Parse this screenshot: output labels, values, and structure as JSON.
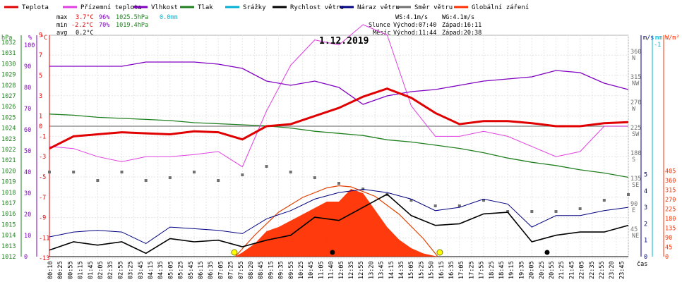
{
  "legend": [
    {
      "label": "Teplota",
      "color": "#e00000"
    },
    {
      "label": "Přízemní teplota",
      "color": "#e040e0"
    },
    {
      "label": "Vlhkost",
      "color": "#8000c0"
    },
    {
      "label": "Tlak",
      "color": "#208020"
    },
    {
      "label": "Srážky",
      "color": "#00b0d0"
    },
    {
      "label": "Rychlost větru",
      "color": "#000000"
    },
    {
      "label": "Náraz větru",
      "color": "#000080"
    },
    {
      "label": "Směr větru",
      "color": "#707070"
    },
    {
      "label": "Globální záření",
      "color": "#ff3000"
    }
  ],
  "stats": {
    "max_label": "max",
    "max_temp": "3.7°C",
    "max_hum": "96%",
    "max_press": "1025.5hPa",
    "max_rain": "0.0mm",
    "min_label": "min",
    "min_temp": "-2.2°C",
    "min_hum": "70%",
    "min_press": "1019.4hPa",
    "avg_label": "avg",
    "avg_temp": "0.2°C",
    "ws": "WS:4.1m/s",
    "wg": "WG:4.1m/s",
    "sun_label": "Slunce",
    "sun_rise": "Východ:07:40",
    "sun_set": "Západ:16:11",
    "moon_label": "Měsíc",
    "moon_rise": "Východ:11:44",
    "moon_set": "Západ:20:38"
  },
  "date_title": "1.12.2019",
  "axes": {
    "hpa_unit": "hPa",
    "pct_unit": "%",
    "c_unit": "°C",
    "ms_unit": "m/s",
    "mm_unit": "mm",
    "wm_unit": "W/m²",
    "time_unit": "čas"
  },
  "chart_data": {
    "type": "line",
    "title": "1.12.2019",
    "x_ticks": [
      "00:10",
      "00:25",
      "00:55",
      "01:15",
      "01:45",
      "02:05",
      "02:35",
      "02:55",
      "03:25",
      "03:45",
      "04:15",
      "04:35",
      "05:05",
      "05:25",
      "05:45",
      "06:15",
      "06:35",
      "07:05",
      "07:25",
      "07:55",
      "08:20",
      "08:45",
      "09:15",
      "09:35",
      "09:55",
      "10:25",
      "10:45",
      "11:05",
      "11:40",
      "12:05",
      "12:35",
      "12:55",
      "13:20",
      "13:45",
      "14:15",
      "14:35",
      "15:05",
      "15:25",
      "15:50",
      "16:15",
      "16:35",
      "17:05",
      "17:25",
      "17:55",
      "18:25",
      "18:45",
      "19:15",
      "19:35",
      "20:05",
      "20:25",
      "20:55",
      "21:25",
      "21:45",
      "22:05",
      "22:35",
      "22:55",
      "23:20",
      "23:45"
    ],
    "hpa_ticks": [
      "1032",
      "1031",
      "1030",
      "1029",
      "1028",
      "1027",
      "1026",
      "1025",
      "1024",
      "1023",
      "1022",
      "1021",
      "1020",
      "1019",
      "1018",
      "1017",
      "1016",
      "1015",
      "1014",
      "1013",
      "1012"
    ],
    "pct_ticks": [
      "100",
      "90",
      "80",
      "70",
      "60",
      "50",
      "40",
      "30",
      "20",
      "10",
      "0"
    ],
    "c_ticks": [
      "9",
      "7",
      "5",
      "3",
      "1",
      "0",
      "-1",
      "-3",
      "-5",
      "-7",
      "-9",
      "-11",
      "-13"
    ],
    "dir_ticks": [
      "360 N",
      "315 NW",
      "270 W",
      "225 SW",
      "180 S",
      "135 SE",
      "90 E",
      "45 NE"
    ],
    "ms_ticks": [
      "5",
      "4",
      "3",
      "2",
      "1",
      "0"
    ],
    "mm_ticks": [
      "-1"
    ],
    "wm_ticks": [
      "405",
      "360",
      "315",
      "270",
      "225",
      "180",
      "135",
      "90",
      "45",
      "0"
    ],
    "series": [
      {
        "name": "Teplota",
        "unit": "°C",
        "x": [
          0,
          1,
          2,
          3,
          4,
          5,
          6,
          7,
          8,
          9,
          10,
          11,
          12,
          13,
          14,
          15,
          16,
          17,
          18,
          19,
          20,
          21,
          22,
          23,
          24
        ],
        "values": [
          -2.2,
          -1.0,
          -0.8,
          -0.6,
          -0.7,
          -0.8,
          -0.5,
          -0.6,
          -1.3,
          0.0,
          0.2,
          1.0,
          1.8,
          2.9,
          3.7,
          2.8,
          1.3,
          0.2,
          0.5,
          0.5,
          0.3,
          0.0,
          0.0,
          0.3,
          0.4
        ]
      },
      {
        "name": "Přízemní teplota",
        "unit": "°C",
        "x": [
          0,
          1,
          2,
          3,
          4,
          5,
          6,
          7,
          8,
          9,
          10,
          11,
          12,
          13,
          14,
          15,
          16,
          17,
          18,
          19,
          20,
          21,
          22,
          23,
          24
        ],
        "values": [
          -2.0,
          -2.2,
          -3.0,
          -3.5,
          -3.0,
          -3.0,
          -2.8,
          -2.5,
          -4.0,
          1.5,
          6.0,
          8.5,
          8.0,
          10.0,
          9.0,
          2.0,
          -1.0,
          -1.0,
          -0.5,
          -1.0,
          -2.0,
          -3.0,
          -2.5,
          0.0,
          0.0
        ]
      },
      {
        "name": "Vlhkost",
        "unit": "%",
        "x": [
          0,
          1,
          2,
          3,
          4,
          5,
          6,
          7,
          8,
          9,
          10,
          11,
          12,
          13,
          14,
          15,
          16,
          17,
          18,
          19,
          20,
          21,
          22,
          23,
          24
        ],
        "values": [
          90,
          90,
          90,
          90,
          92,
          92,
          92,
          91,
          89,
          83,
          81,
          83,
          80,
          72,
          76,
          78,
          79,
          81,
          83,
          84,
          85,
          88,
          87,
          82,
          79
        ]
      },
      {
        "name": "Tlak",
        "unit": "hPa",
        "x": [
          0,
          1,
          2,
          3,
          4,
          5,
          6,
          7,
          8,
          9,
          10,
          11,
          12,
          13,
          14,
          15,
          16,
          17,
          18,
          19,
          20,
          21,
          22,
          23,
          24
        ],
        "values": [
          1025.3,
          1025.2,
          1025.0,
          1024.9,
          1024.8,
          1024.7,
          1024.5,
          1024.4,
          1024.3,
          1024.2,
          1024.0,
          1023.7,
          1023.5,
          1023.3,
          1022.9,
          1022.7,
          1022.4,
          1022.1,
          1021.7,
          1021.2,
          1020.8,
          1020.5,
          1020.1,
          1019.8,
          1019.4
        ]
      },
      {
        "name": "Rychlost větru",
        "unit": "m/s",
        "x": [
          0,
          1,
          2,
          3,
          4,
          5,
          6,
          7,
          8,
          9,
          10,
          11,
          12,
          13,
          14,
          15,
          16,
          17,
          18,
          19,
          20,
          21,
          22,
          23,
          24
        ],
        "values": [
          0.4,
          0.9,
          0.7,
          0.9,
          0.2,
          1.1,
          0.9,
          1.0,
          0.6,
          1.0,
          1.3,
          2.4,
          2.2,
          3.0,
          3.8,
          2.5,
          1.9,
          2.0,
          2.6,
          2.7,
          0.9,
          1.3,
          1.5,
          1.5,
          1.9
        ]
      },
      {
        "name": "Náraz větru",
        "unit": "m/s",
        "x": [
          0,
          1,
          2,
          3,
          4,
          5,
          6,
          7,
          8,
          9,
          10,
          11,
          12,
          13,
          14,
          15,
          16,
          17,
          18,
          19,
          20,
          21,
          22,
          23,
          24
        ],
        "values": [
          1.2,
          1.5,
          1.6,
          1.5,
          0.8,
          1.8,
          1.7,
          1.6,
          1.4,
          2.3,
          2.8,
          3.5,
          3.9,
          4.1,
          3.9,
          3.5,
          2.8,
          3.0,
          3.5,
          3.2,
          1.8,
          2.5,
          2.5,
          2.8,
          3.0
        ]
      },
      {
        "name": "Směr větru",
        "unit": "°",
        "x": [
          0,
          1,
          2,
          3,
          4,
          5,
          6,
          7,
          8,
          9,
          10,
          11,
          12,
          13,
          14,
          15,
          16,
          17,
          18,
          19,
          20,
          21,
          22,
          23,
          24
        ],
        "values": [
          150,
          150,
          135,
          150,
          135,
          140,
          150,
          135,
          145,
          160,
          150,
          140,
          130,
          120,
          110,
          100,
          90,
          90,
          100,
          80,
          80,
          80,
          85,
          100,
          110
        ]
      },
      {
        "name": "Globální záření",
        "unit": "W/m²",
        "x": [
          7.7,
          8,
          8.5,
          9,
          9.5,
          10,
          10.5,
          11,
          11.5,
          12,
          12.5,
          13,
          13.5,
          14,
          14.5,
          15,
          15.5,
          16.1
        ],
        "values": [
          0,
          20,
          60,
          120,
          140,
          170,
          200,
          230,
          260,
          260,
          320,
          300,
          220,
          140,
          80,
          40,
          15,
          0
        ]
      },
      {
        "name": "Globální záření (teoretické)",
        "unit": "W/m²",
        "x": [
          7.7,
          8.5,
          9.5,
          10.5,
          11.5,
          12,
          12.5,
          13.5,
          14.5,
          15.5,
          16.1
        ],
        "values": [
          0,
          100,
          210,
          280,
          325,
          335,
          330,
          285,
          200,
          85,
          0
        ]
      }
    ]
  }
}
